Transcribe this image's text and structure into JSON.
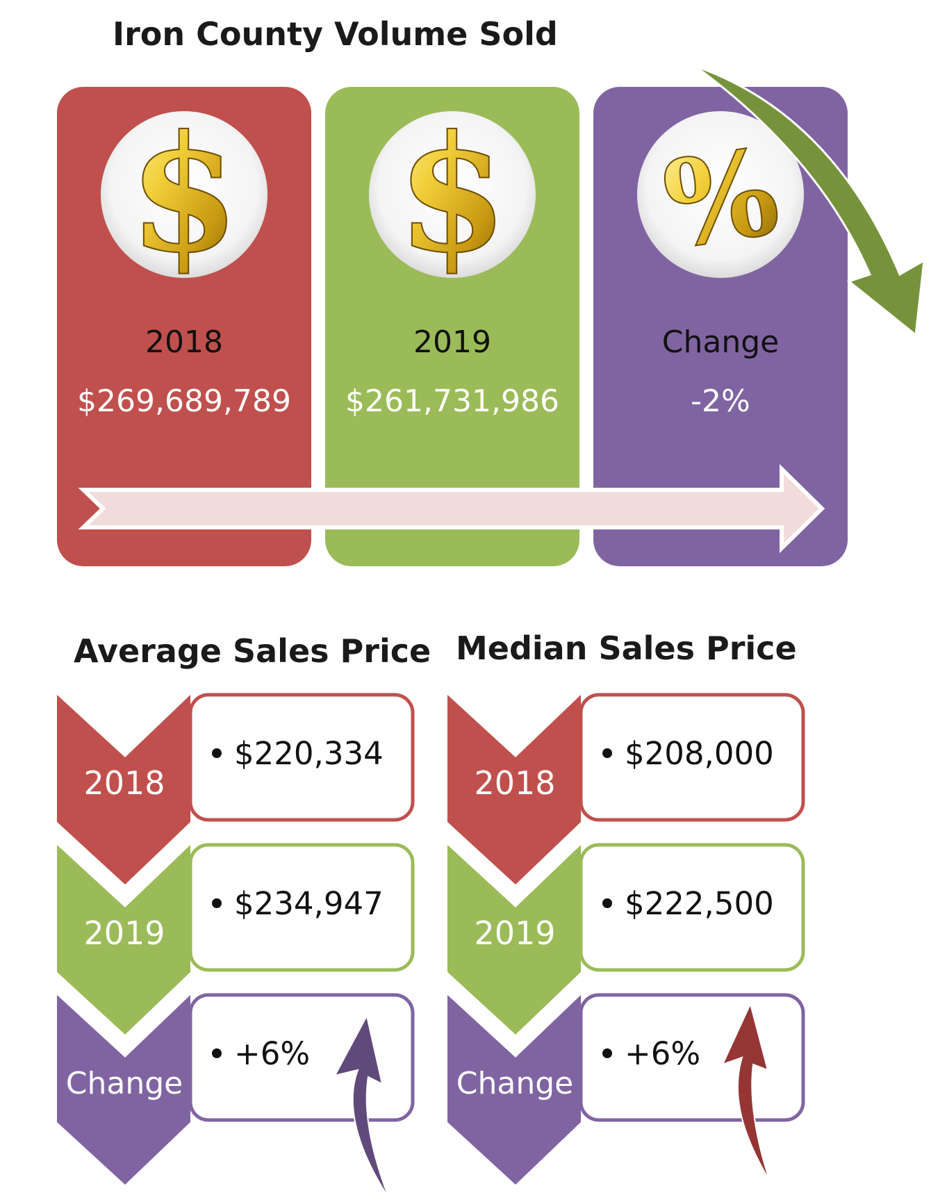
{
  "volume": {
    "title": "Iron County Volume Sold",
    "cards": [
      {
        "label": "2018",
        "value": "$269,689,789",
        "icon": "dollar-icon",
        "color": "#c0504d"
      },
      {
        "label": "2019",
        "value": "$261,731,986",
        "icon": "dollar-icon",
        "color": "#9bbb59"
      },
      {
        "label": "Change",
        "value": "-2%",
        "icon": "percent-icon",
        "color": "#8064a2"
      }
    ],
    "trend": "down"
  },
  "average": {
    "title": "Average Sales Price",
    "rows": [
      {
        "label": "2018",
        "value": "$220,334",
        "color": "#c0504d"
      },
      {
        "label": "2019",
        "value": "$234,947",
        "color": "#9bbb59"
      },
      {
        "label": "Change",
        "value": "+6%",
        "color": "#8064a2"
      }
    ],
    "trend": "up"
  },
  "median": {
    "title": "Median Sales Price",
    "rows": [
      {
        "label": "2018",
        "value": "$208,000",
        "color": "#c0504d"
      },
      {
        "label": "2019",
        "value": "$222,500",
        "color": "#9bbb59"
      },
      {
        "label": "Change",
        "value": "+6%",
        "color": "#8064a2"
      }
    ],
    "trend": "up"
  }
}
